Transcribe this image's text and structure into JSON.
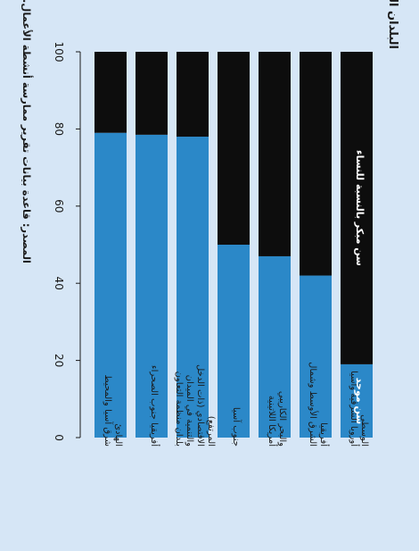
{
  "chart_data": {
    "type": "bar",
    "orientation": "horizontal-stacked",
    "title": "البلدان القائمة بتطبيق سن تقاعد موحد بالنسبة للرجال والنساء (%)",
    "source": "المصدر: قاعدة بيانات تقرير ممارسة أنشطة الأعمال.",
    "categories": [
      "أوروبا الشرقية وآسيا الوسطى",
      "الشرق الأوسط وشمال أفريقيا",
      "أمريكا اللاتينية والبحر الكاريبي",
      "جنوب آسيا",
      "بلدان منظمة التعاون والتنمية في الميدان الاقتصادي (ذات الدخل المرتفع)",
      "أفريقيا جنوب الصحراء",
      "شرق آسيا والمحيط الهادئ"
    ],
    "series": [
      {
        "name": "سن موحد",
        "color": "#2b88c8",
        "values": [
          19,
          42,
          47,
          50,
          78,
          78.5,
          79
        ]
      },
      {
        "name": "سن مبكر بالنسبة للنساء",
        "color": "#0d0d0d",
        "values": [
          81,
          58,
          53,
          50,
          22,
          21.5,
          21
        ]
      }
    ],
    "axis": {
      "min": 0,
      "max": 100,
      "ticks": [
        0,
        20,
        40,
        60,
        80,
        100
      ]
    },
    "legend_placement": "inside-bars",
    "grid": false
  }
}
